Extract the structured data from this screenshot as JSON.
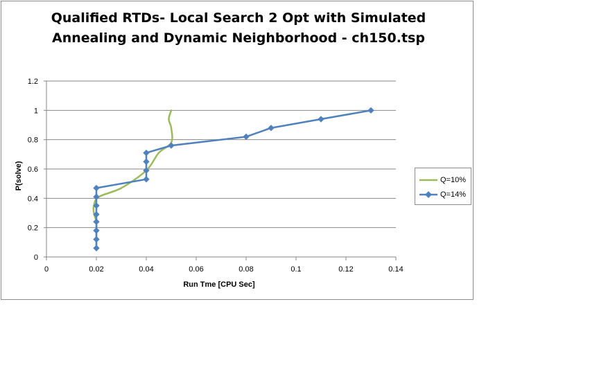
{
  "chart_data": {
    "type": "line",
    "title_lines": [
      "Qualified RTDs- Local Search 2 Opt with Simulated",
      "Annealing and Dynamic Neighborhood - ch150.tsp"
    ],
    "xlabel": "Run Tme [CPU Sec]",
    "ylabel": "P(solve)",
    "xlim": [
      0,
      0.14
    ],
    "ylim": [
      0,
      1.2
    ],
    "x_ticks": [
      "0",
      "0.02",
      "0.04",
      "0.06",
      "0.08",
      "0.1",
      "0.12",
      "0.14"
    ],
    "y_ticks": [
      "0",
      "0.2",
      "0.4",
      "0.6",
      "0.8",
      "1",
      "1.2"
    ],
    "grid": "horizontal",
    "legend_position": "right",
    "series": [
      {
        "name": "Q=10%",
        "color": "#9bbb59",
        "markers": false,
        "smooth": true,
        "points": [
          [
            0.02,
            0.06
          ],
          [
            0.02,
            0.12
          ],
          [
            0.02,
            0.18
          ],
          [
            0.02,
            0.24
          ],
          [
            0.019,
            0.3
          ],
          [
            0.019,
            0.35
          ],
          [
            0.021,
            0.41
          ],
          [
            0.03,
            0.47
          ],
          [
            0.04,
            0.59
          ],
          [
            0.045,
            0.71
          ],
          [
            0.05,
            0.78
          ],
          [
            0.05,
            0.88
          ],
          [
            0.049,
            0.94
          ],
          [
            0.05,
            1.0
          ]
        ]
      },
      {
        "name": "Q=14%",
        "color": "#4f81bd",
        "markers": true,
        "smooth": false,
        "points": [
          [
            0.02,
            0.06
          ],
          [
            0.02,
            0.12
          ],
          [
            0.02,
            0.18
          ],
          [
            0.02,
            0.24
          ],
          [
            0.02,
            0.29
          ],
          [
            0.02,
            0.35
          ],
          [
            0.02,
            0.41
          ],
          [
            0.02,
            0.47
          ],
          [
            0.04,
            0.53
          ],
          [
            0.04,
            0.59
          ],
          [
            0.04,
            0.65
          ],
          [
            0.04,
            0.71
          ],
          [
            0.05,
            0.76
          ],
          [
            0.08,
            0.82
          ],
          [
            0.09,
            0.88
          ],
          [
            0.11,
            0.94
          ],
          [
            0.13,
            1.0
          ]
        ]
      }
    ]
  }
}
